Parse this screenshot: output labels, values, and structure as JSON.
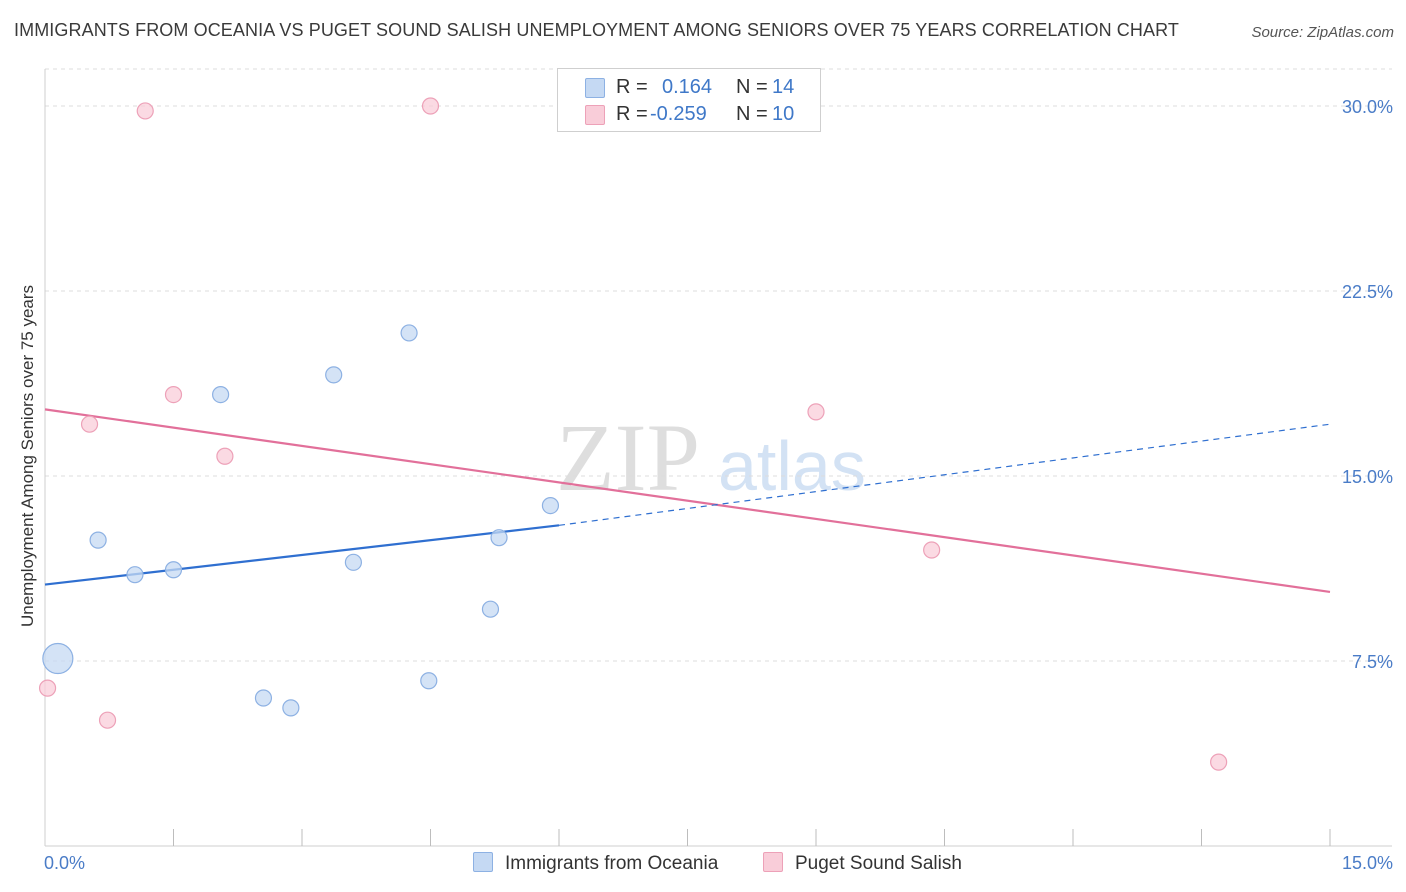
{
  "header": {
    "title": "IMMIGRANTS FROM OCEANIA VS PUGET SOUND SALISH UNEMPLOYMENT AMONG SENIORS OVER 75 YEARS CORRELATION CHART",
    "source": "Source: ZipAtlas.com"
  },
  "watermark": {
    "zip": "ZIP",
    "atlas": "atlas"
  },
  "legend": {
    "rows": [
      {
        "r_label": "R =",
        "r_value": "0.164",
        "n_label": "N =",
        "n_value": "14"
      },
      {
        "r_label": "R =",
        "r_value": "-0.259",
        "n_label": "N =",
        "n_value": "10"
      }
    ]
  },
  "bottom_legend": {
    "series1": "Immigrants from Oceania",
    "series2": "Puget Sound Salish"
  },
  "colors": {
    "series1_fill": "#c5d9f3",
    "series1_stroke": "#8db1e3",
    "series1_line": "#2f6fd0",
    "series2_fill": "#f9cdd9",
    "series2_stroke": "#eda1b8",
    "series2_line": "#e2709a",
    "tick": "#4a7cc7"
  },
  "chart_data": {
    "type": "scatter",
    "title": "IMMIGRANTS FROM OCEANIA VS PUGET SOUND SALISH UNEMPLOYMENT AMONG SENIORS OVER 75 YEARS CORRELATION CHART",
    "xlabel": "",
    "ylabel": "Unemployment Among Seniors over 75 years",
    "xlim": [
      0,
      15
    ],
    "ylim": [
      0,
      31.5
    ],
    "x_tick_labels": [
      "0.0%",
      "15.0%"
    ],
    "y_ticks": [
      7.5,
      15.0,
      22.5,
      30.0
    ],
    "y_tick_labels": [
      "7.5%",
      "15.0%",
      "22.5%",
      "30.0%"
    ],
    "series": [
      {
        "name": "Immigrants from Oceania",
        "r": 0.164,
        "n": 14,
        "points": [
          {
            "x": 0.15,
            "y": 7.6,
            "big": true
          },
          {
            "x": 0.62,
            "y": 12.4
          },
          {
            "x": 1.05,
            "y": 11.0
          },
          {
            "x": 1.5,
            "y": 11.2
          },
          {
            "x": 2.05,
            "y": 18.3
          },
          {
            "x": 2.55,
            "y": 6.0
          },
          {
            "x": 2.87,
            "y": 5.6
          },
          {
            "x": 3.37,
            "y": 19.1
          },
          {
            "x": 3.6,
            "y": 11.5
          },
          {
            "x": 4.25,
            "y": 20.8
          },
          {
            "x": 4.48,
            "y": 6.7
          },
          {
            "x": 5.2,
            "y": 9.6
          },
          {
            "x": 5.3,
            "y": 12.5
          },
          {
            "x": 5.9,
            "y": 13.8
          }
        ],
        "trend": {
          "x0": 0,
          "y0": 10.6,
          "x1": 6.0,
          "y1": 13.0,
          "dash_x1": 15,
          "dash_y1": 17.1
        }
      },
      {
        "name": "Puget Sound Salish",
        "r": -0.259,
        "n": 10,
        "points": [
          {
            "x": 0.03,
            "y": 6.4
          },
          {
            "x": 0.52,
            "y": 17.1
          },
          {
            "x": 0.73,
            "y": 5.1
          },
          {
            "x": 1.17,
            "y": 29.8
          },
          {
            "x": 1.5,
            "y": 18.3
          },
          {
            "x": 2.1,
            "y": 15.8
          },
          {
            "x": 4.5,
            "y": 30.0
          },
          {
            "x": 9.0,
            "y": 17.6
          },
          {
            "x": 10.35,
            "y": 12.0
          },
          {
            "x": 13.7,
            "y": 3.4
          }
        ],
        "trend": {
          "x0": 0,
          "y0": 17.7,
          "x1": 15,
          "y1": 10.3
        }
      }
    ]
  }
}
